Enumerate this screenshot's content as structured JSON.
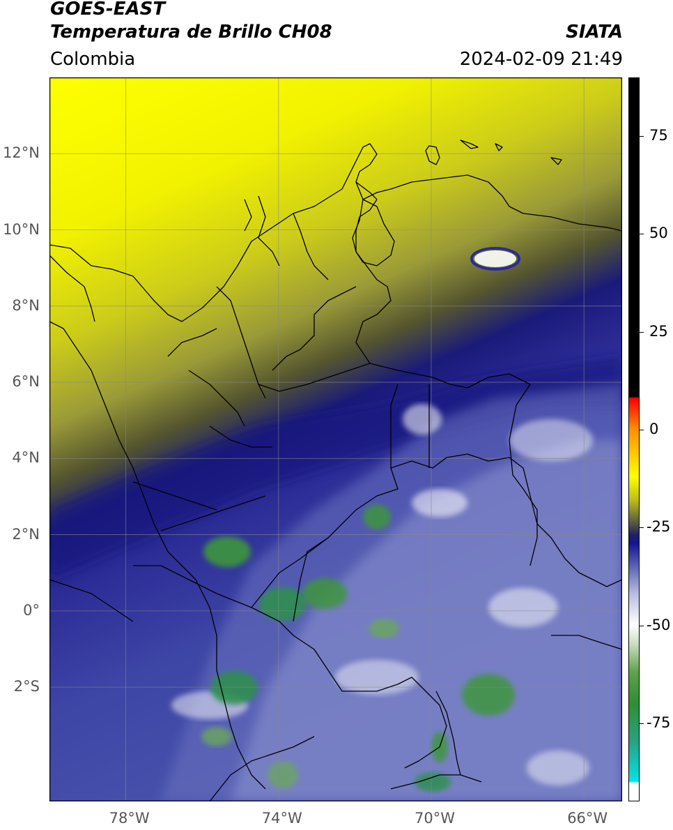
{
  "header": {
    "satellite": "GOES-EAST",
    "product": "Temperatura de Brillo CH08",
    "region": "Colombia",
    "source": "SIATA",
    "datetime": "2024-02-09 21:49"
  },
  "map": {
    "lon_range": [
      -80,
      -65
    ],
    "lat_range": [
      -5,
      14
    ],
    "lat_ticks": [
      {
        "value": 12,
        "label": "12°N"
      },
      {
        "value": 10,
        "label": "10°N"
      },
      {
        "value": 8,
        "label": "8°N"
      },
      {
        "value": 6,
        "label": "6°N"
      },
      {
        "value": 4,
        "label": "4°N"
      },
      {
        "value": 2,
        "label": "2°N"
      },
      {
        "value": 0,
        "label": "0°"
      },
      {
        "value": -2,
        "label": "2°S"
      }
    ],
    "lon_ticks": [
      {
        "value": -78,
        "label": "78°W"
      },
      {
        "value": -74,
        "label": "74°W"
      },
      {
        "value": -70,
        "label": "70°W"
      },
      {
        "value": -66,
        "label": "66°W"
      }
    ],
    "gridlines": true
  },
  "colorbar": {
    "min": -95,
    "max": 90,
    "ticks": [
      {
        "value": 75,
        "label": "75"
      },
      {
        "value": 50,
        "label": "50"
      },
      {
        "value": 25,
        "label": "25"
      },
      {
        "value": 0,
        "label": "0"
      },
      {
        "value": -25,
        "label": "-25"
      },
      {
        "value": -50,
        "label": "-50"
      },
      {
        "value": -75,
        "label": "-75"
      }
    ],
    "stops": [
      {
        "value": -95,
        "color": "#ffffff"
      },
      {
        "value": -90.5,
        "color": "#ffffff"
      },
      {
        "value": -90,
        "color": "#00e5e5"
      },
      {
        "value": -80,
        "color": "#27a384"
      },
      {
        "value": -70,
        "color": "#2f8f2f"
      },
      {
        "value": -62,
        "color": "#5fa34a"
      },
      {
        "value": -55,
        "color": "#c8dcc0"
      },
      {
        "value": -50,
        "color": "#ffffff"
      },
      {
        "value": -42,
        "color": "#b8bde0"
      },
      {
        "value": -35,
        "color": "#5b63b5"
      },
      {
        "value": -29,
        "color": "#14148f"
      },
      {
        "value": -27,
        "color": "#1f1f6a"
      },
      {
        "value": -24,
        "color": "#565643"
      },
      {
        "value": -18,
        "color": "#bcbc1c"
      },
      {
        "value": -12,
        "color": "#ffff00"
      },
      {
        "value": 0,
        "color": "#ff9000"
      },
      {
        "value": 8,
        "color": "#ff0000"
      },
      {
        "value": 8.5,
        "color": "#000000"
      },
      {
        "value": 90,
        "color": "#000000"
      }
    ]
  }
}
